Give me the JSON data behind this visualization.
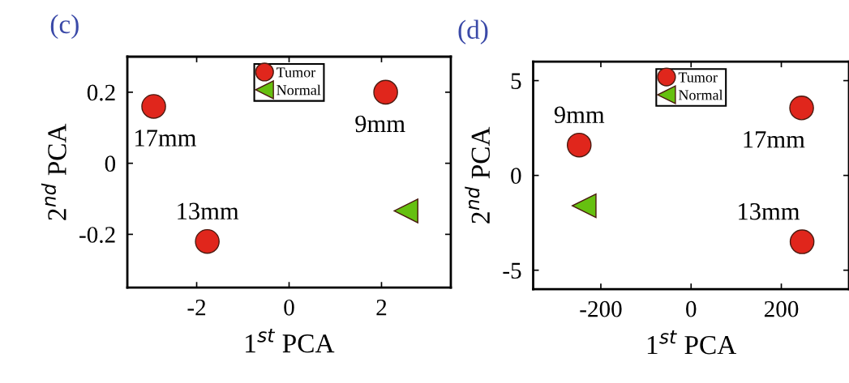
{
  "chart_data": [
    {
      "type": "scatter",
      "title": "(c)",
      "xlabel": "1$^{st}$ PCA",
      "ylabel": "2$^{nd}$ PCA",
      "xlim": [
        -3.5,
        3.5
      ],
      "xticks": [
        -2,
        0,
        2
      ],
      "ylim": [
        -0.35,
        0.3
      ],
      "yticks": [
        -0.2,
        0,
        0.2
      ],
      "grid": false,
      "legend": "top",
      "series": [
        {
          "name": "Tumor",
          "color": "#e0261c",
          "marker": "circle",
          "x": [
            -2.93,
            2.09,
            -1.77
          ],
          "values": [
            0.16,
            0.2,
            -0.22
          ]
        },
        {
          "name": "Normal",
          "color": "#66c010",
          "marker": "triangle",
          "x": [
            2.53
          ],
          "values": [
            -0.134
          ]
        }
      ],
      "annotations": [
        {
          "text": "17mm",
          "x": -2.93,
          "y": 0.16
        },
        {
          "text": "9mm",
          "x": 2.09,
          "y": 0.2
        },
        {
          "text": "13mm",
          "x": -1.77,
          "y": -0.22
        }
      ]
    },
    {
      "type": "scatter",
      "title": "(d)",
      "xlabel": "1$^{st}$ PCA",
      "ylabel": "2$^{nd}$ PCA",
      "xlim": [
        -350,
        350
      ],
      "xticks": [
        -200,
        0,
        200
      ],
      "ylim": [
        -6,
        6
      ],
      "yticks": [
        -5,
        0,
        5
      ],
      "grid": false,
      "legend": "top",
      "series": [
        {
          "name": "Tumor",
          "color": "#e0261c",
          "marker": "circle",
          "x": [
            -248,
            245,
            246
          ],
          "values": [
            1.6,
            3.56,
            -3.5
          ]
        },
        {
          "name": "Normal",
          "color": "#66c010",
          "marker": "triangle",
          "x": [
            -237
          ],
          "values": [
            -1.6
          ]
        }
      ],
      "annotations": [
        {
          "text": "9mm",
          "x": -248,
          "y": 1.6
        },
        {
          "text": "17mm",
          "x": 245,
          "y": 3.56
        },
        {
          "text": "13mm",
          "x": 246,
          "y": -3.5
        }
      ]
    }
  ]
}
